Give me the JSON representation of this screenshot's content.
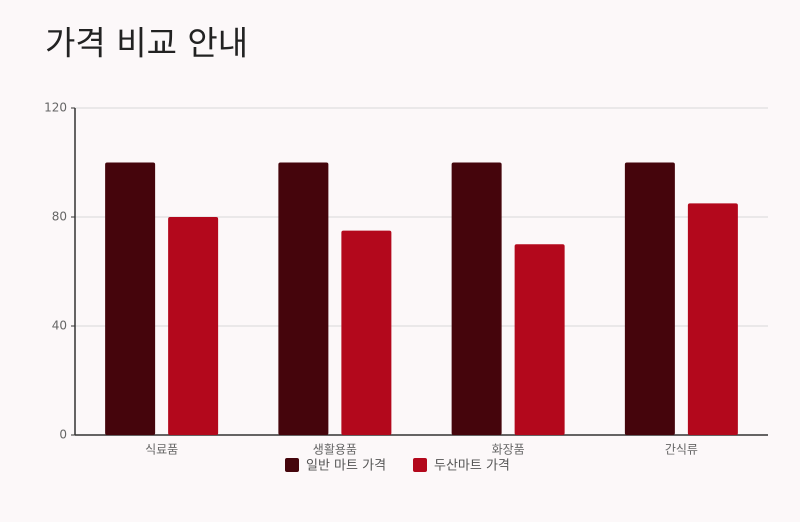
{
  "chart_data": {
    "type": "bar",
    "title": "가격 비교 안내",
    "categories": [
      "식료품",
      "생활용품",
      "화장품",
      "간식류"
    ],
    "series": [
      {
        "name": "일반 마트 가격",
        "color": "#45050c",
        "values": [
          100,
          100,
          100,
          100
        ]
      },
      {
        "name": "두산마트 가격",
        "color": "#b3081c",
        "values": [
          80,
          75,
          70,
          85
        ]
      }
    ],
    "ylim": [
      0,
      120
    ],
    "yticks": [
      0,
      40,
      80,
      120
    ],
    "grid": true,
    "legend": "bottom"
  }
}
